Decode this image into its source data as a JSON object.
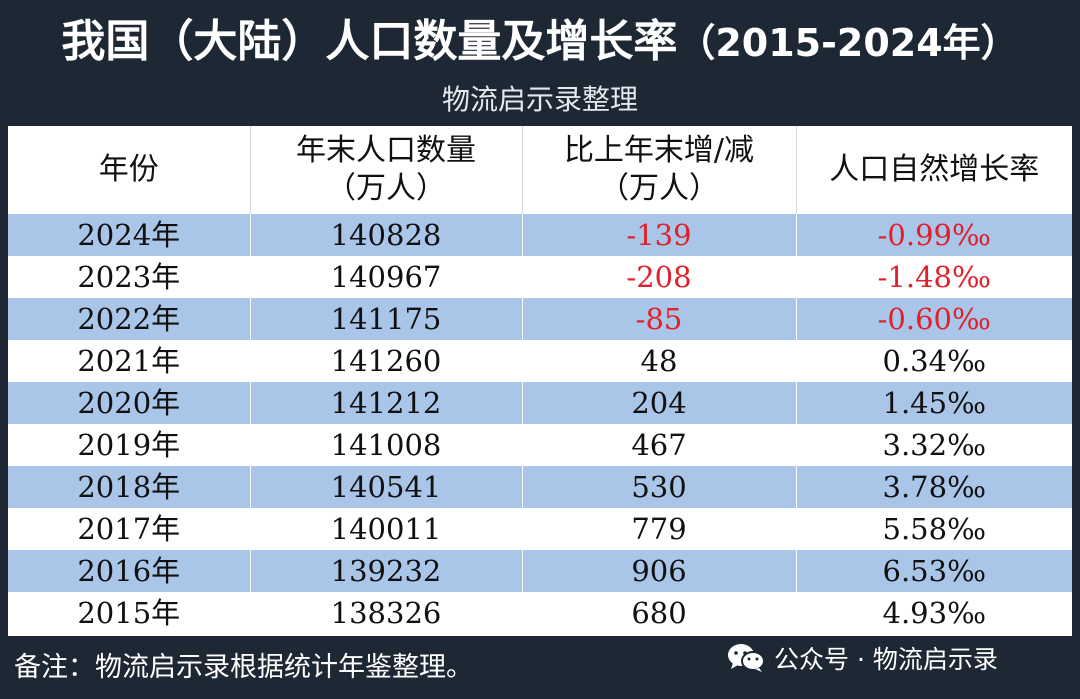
{
  "header": {
    "title": "我国（大陆）人口数量及增长率",
    "year_range": "（2015-2024年）",
    "subtitle": "物流启示录整理"
  },
  "table": {
    "columns": [
      {
        "line1": "年份",
        "line2": ""
      },
      {
        "line1": "年末人口数量",
        "line2": "（万人）"
      },
      {
        "line1": "比上年末增/减",
        "line2": "（万人）"
      },
      {
        "line1": "人口自然增长率",
        "line2": ""
      }
    ],
    "rows": [
      {
        "year": "2024年",
        "population": "140828",
        "change": "-139",
        "rate": "-0.99‰",
        "negative": true
      },
      {
        "year": "2023年",
        "population": "140967",
        "change": "-208",
        "rate": "-1.48‰",
        "negative": true
      },
      {
        "year": "2022年",
        "population": "141175",
        "change": "-85",
        "rate": "-0.60‰",
        "negative": true
      },
      {
        "year": "2021年",
        "population": "141260",
        "change": "48",
        "rate": "0.34‰",
        "negative": false
      },
      {
        "year": "2020年",
        "population": "141212",
        "change": "204",
        "rate": "1.45‰",
        "negative": false
      },
      {
        "year": "2019年",
        "population": "141008",
        "change": "467",
        "rate": "3.32‰",
        "negative": false
      },
      {
        "year": "2018年",
        "population": "140541",
        "change": "530",
        "rate": "3.78‰",
        "negative": false
      },
      {
        "year": "2017年",
        "population": "140011",
        "change": "779",
        "rate": "5.58‰",
        "negative": false
      },
      {
        "year": "2016年",
        "population": "139232",
        "change": "906",
        "rate": "6.53‰",
        "negative": false
      },
      {
        "year": "2015年",
        "population": "138326",
        "change": "680",
        "rate": "4.93‰",
        "negative": false
      }
    ]
  },
  "footer": {
    "note": "备注：物流启示录根据统计年鉴整理。",
    "watermark": "公众号 · 物流启示录",
    "watermark_icon": "wechat-icon"
  },
  "colors": {
    "background": "#1e2734",
    "row_shade": "#a9c6e8",
    "negative": "#e0202a"
  }
}
